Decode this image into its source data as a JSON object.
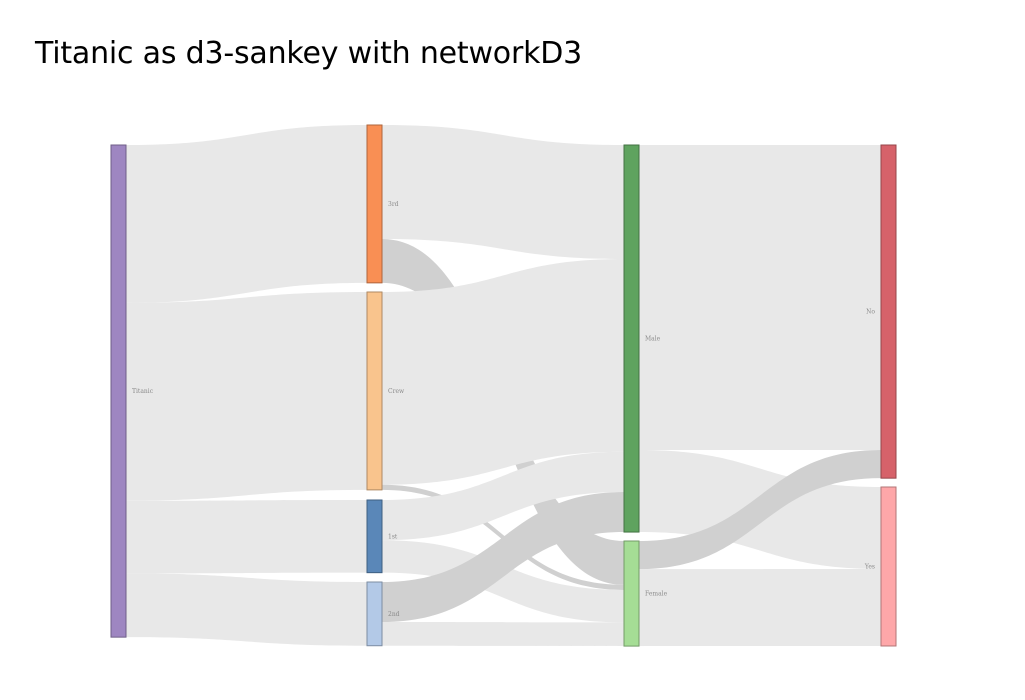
{
  "page": {
    "title": "Titanic as d3-sankey with networkD3"
  },
  "chart_data": {
    "type": "sankey",
    "title": "Titanic as d3-sankey with networkD3",
    "node_padding_note": "",
    "nodes": [
      {
        "name": "Titanic",
        "stage": 0,
        "color": "#9e86c1"
      },
      {
        "name": "3rd",
        "stage": 1,
        "color": "#f98f54"
      },
      {
        "name": "Crew",
        "stage": 1,
        "color": "#f9c48d"
      },
      {
        "name": "1st",
        "stage": 1,
        "color": "#5a87b8"
      },
      {
        "name": "2nd",
        "stage": 1,
        "color": "#b3c9e7"
      },
      {
        "name": "Male",
        "stage": 2,
        "color": "#5fa35f"
      },
      {
        "name": "Female",
        "stage": 2,
        "color": "#a5dd95"
      },
      {
        "name": "No",
        "stage": 3,
        "color": "#d6626a"
      },
      {
        "name": "Yes",
        "stage": 3,
        "color": "#fea7a9"
      }
    ],
    "links": [
      {
        "source": "Titanic",
        "target": "3rd",
        "value": 706,
        "highlight": false
      },
      {
        "source": "Titanic",
        "target": "Crew",
        "value": 885,
        "highlight": false
      },
      {
        "source": "Titanic",
        "target": "1st",
        "value": 325,
        "highlight": false
      },
      {
        "source": "Titanic",
        "target": "2nd",
        "value": 285,
        "highlight": false
      },
      {
        "source": "3rd",
        "target": "Male",
        "value": 510,
        "highlight": false
      },
      {
        "source": "3rd",
        "target": "Female",
        "value": 196,
        "highlight": true
      },
      {
        "source": "Crew",
        "target": "Male",
        "value": 862,
        "highlight": false
      },
      {
        "source": "Crew",
        "target": "Female",
        "value": 23,
        "highlight": true
      },
      {
        "source": "1st",
        "target": "Male",
        "value": 180,
        "highlight": false
      },
      {
        "source": "1st",
        "target": "Female",
        "value": 145,
        "highlight": false
      },
      {
        "source": "2nd",
        "target": "Male",
        "value": 179,
        "highlight": true
      },
      {
        "source": "2nd",
        "target": "Female",
        "value": 106,
        "highlight": false
      },
      {
        "source": "Male",
        "target": "No",
        "value": 1364,
        "highlight": false
      },
      {
        "source": "Male",
        "target": "Yes",
        "value": 367,
        "highlight": false
      },
      {
        "source": "Female",
        "target": "No",
        "value": 126,
        "highlight": true
      },
      {
        "source": "Female",
        "target": "Yes",
        "value": 344,
        "highlight": false
      }
    ]
  }
}
